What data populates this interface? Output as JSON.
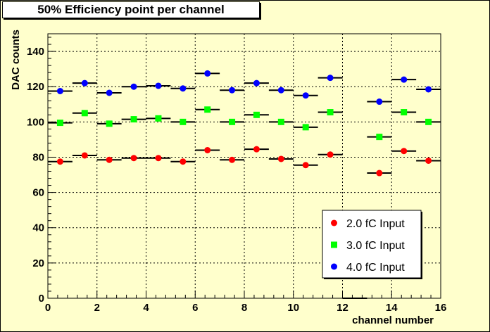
{
  "chart_data": {
    "type": "scatter",
    "title": "50% Efficiency point per channel",
    "xlabel": "channel number",
    "ylabel": "DAC counts",
    "xlim": [
      0,
      16
    ],
    "ylim": [
      0,
      150
    ],
    "xticks": [
      0,
      2,
      4,
      6,
      8,
      10,
      12,
      14,
      16
    ],
    "yticks": [
      0,
      20,
      40,
      60,
      80,
      100,
      120,
      140
    ],
    "grid": true,
    "legend_position": "bottom-right",
    "x": [
      0.5,
      1.5,
      2.5,
      3.5,
      4.5,
      5.5,
      6.5,
      7.5,
      8.5,
      9.5,
      10.5,
      11.5,
      13.5,
      14.5,
      15.5
    ],
    "x_error_halfwidth": 0.5,
    "series": [
      {
        "name": "2.0 fC Input",
        "color": "#ff0000",
        "marker": "circle",
        "values": [
          77.5,
          81,
          78.5,
          79.5,
          79.5,
          77.5,
          84,
          78.5,
          84.5,
          79,
          75.5,
          81.5,
          71,
          83.5,
          78
        ]
      },
      {
        "name": "3.0 fC Input",
        "color": "#00ff00",
        "marker": "square",
        "values": [
          99.5,
          105,
          99,
          101.5,
          102,
          100,
          107,
          100,
          104,
          100,
          97,
          105.5,
          91.5,
          105.5,
          100
        ]
      },
      {
        "name": "4.0 fC Input",
        "color": "#0000ff",
        "marker": "circle",
        "values": [
          117.5,
          122,
          116.5,
          120,
          120.5,
          119,
          127.5,
          118,
          122,
          118,
          115,
          125,
          111.5,
          124,
          118.5
        ]
      }
    ],
    "extra_segments": [
      {
        "x_from": 12,
        "x_to": 13,
        "y": 0
      }
    ]
  }
}
